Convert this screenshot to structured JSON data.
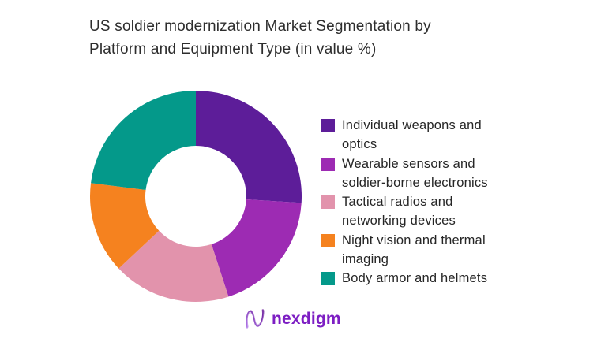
{
  "title": {
    "lines": [
      "US soldier modernization Market Segmentation by",
      "Platform and Equipment Type (in value %)"
    ]
  },
  "chart_data": {
    "type": "pie",
    "subtype": "donut",
    "title": "US soldier modernization Market Segmentation by Platform and Equipment Type (in value %)",
    "categories": [
      "Individual weapons and optics",
      "Wearable sensors and soldier-borne electronics",
      "Tactical radios and networking devices",
      "Night vision and thermal imaging",
      "Body armor and helmets"
    ],
    "values": [
      26,
      19,
      18,
      14,
      23
    ],
    "unit": "value %",
    "colors": [
      "#5d1d99",
      "#9d2bb3",
      "#e293ac",
      "#f5821f",
      "#04998a"
    ],
    "start_angle_deg": 0,
    "direction": "clockwise",
    "inner_radius_ratio": 0.48,
    "legend_position": "right",
    "data_labels": false
  },
  "legend": {
    "items": [
      {
        "label": "Individual weapons and optics",
        "lines": [
          "Individual weapons and",
          "optics"
        ],
        "color": "#5d1d99"
      },
      {
        "label": "Wearable sensors and soldier-borne electronics",
        "lines": [
          "Wearable sensors and",
          "soldier-borne electronics"
        ],
        "color": "#9d2bb3"
      },
      {
        "label": "Tactical radios and networking devices",
        "lines": [
          "Tactical radios and",
          "networking devices"
        ],
        "color": "#e293ac"
      },
      {
        "label": "Night vision and thermal imaging",
        "lines": [
          "Night vision and thermal",
          "imaging"
        ],
        "color": "#f5821f"
      },
      {
        "label": "Body armor and helmets",
        "lines": [
          "Body armor and helmets"
        ],
        "color": "#04998a"
      }
    ]
  },
  "logo": {
    "text": "nexdigm",
    "text_color": "#7d1ec3",
    "mark": "nexdigm-wave-monogram"
  }
}
